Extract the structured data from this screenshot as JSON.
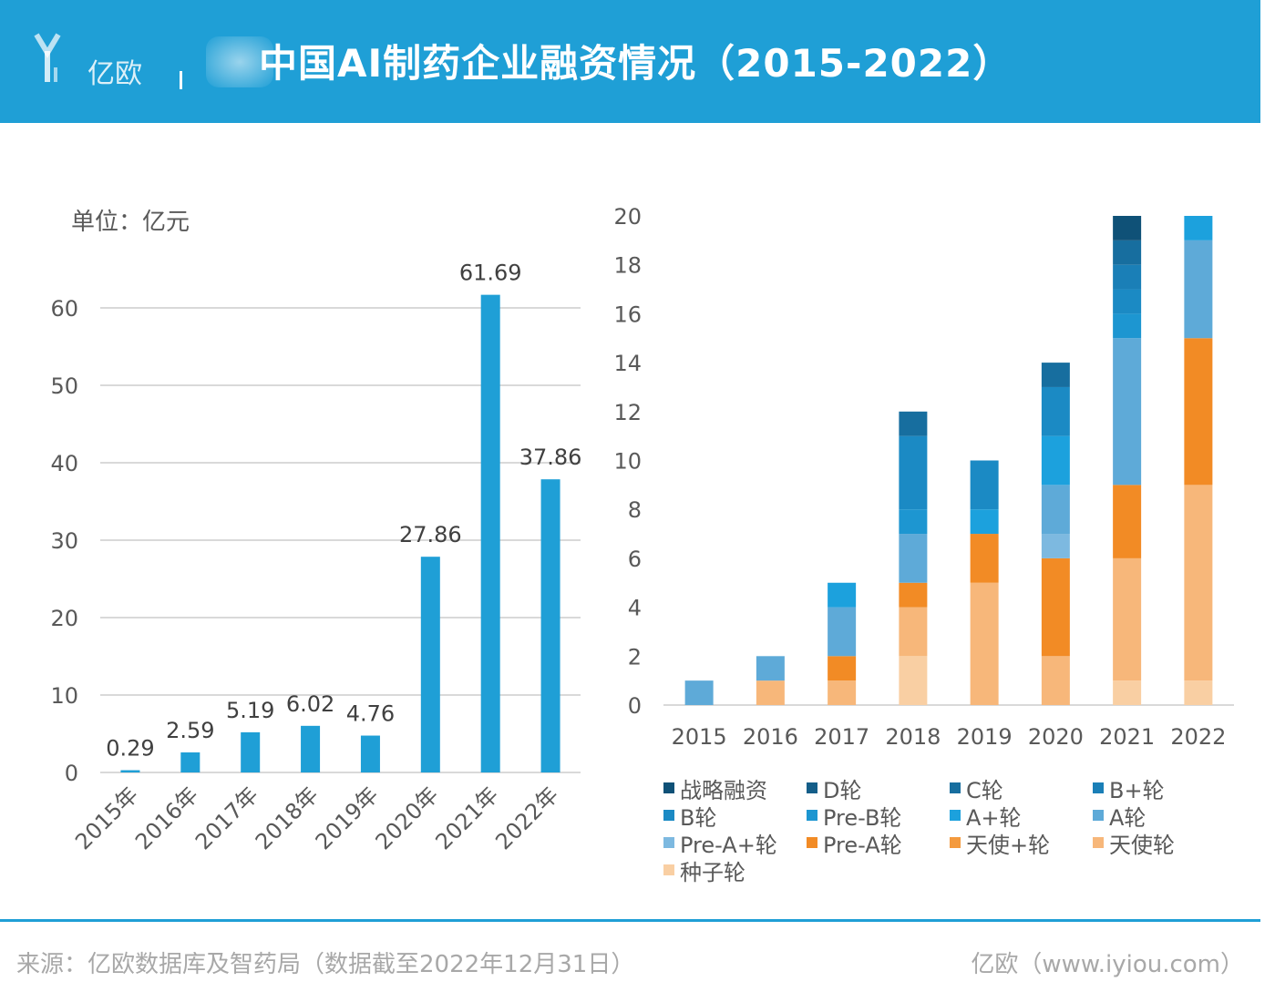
{
  "header": {
    "title": "中国AI制药企业融资情况（2015-2022）",
    "logo_text": "亿欧",
    "background_color": "#1f9fd6"
  },
  "chart_data": [
    {
      "type": "bar",
      "title": "",
      "unit_label": "单位：亿元",
      "categories": [
        "2015年",
        "2016年",
        "2017年",
        "2018年",
        "2019年",
        "2020年",
        "2021年",
        "2022年"
      ],
      "values": [
        0.29,
        2.59,
        5.19,
        6.02,
        4.76,
        27.86,
        61.69,
        37.86
      ],
      "value_labels": [
        "0.29",
        "2.59",
        "5.19",
        "6.02",
        "4.76",
        "27.86",
        "61.69",
        "37.86"
      ],
      "ylim": [
        0,
        60
      ],
      "yticks": [
        0,
        10,
        20,
        30,
        40,
        50,
        60
      ],
      "grid": true,
      "color": "#1f9fd6"
    },
    {
      "type": "bar",
      "stacked": true,
      "title": "",
      "categories": [
        "2015",
        "2016",
        "2017",
        "2018",
        "2019",
        "2020",
        "2021",
        "2022"
      ],
      "ylim": [
        0,
        20
      ],
      "yticks": [
        0,
        2,
        4,
        6,
        8,
        10,
        12,
        14,
        16,
        18,
        20
      ],
      "grid": false,
      "legend_position": "bottom",
      "series": [
        {
          "name": "种子轮",
          "color": "#f9cfa3",
          "values": [
            0,
            0,
            0,
            2,
            0,
            0,
            1,
            1
          ]
        },
        {
          "name": "天使轮",
          "color": "#f7b77a",
          "values": [
            0,
            1,
            1,
            2,
            5,
            2,
            5,
            8
          ]
        },
        {
          "name": "天使+轮",
          "color": "#f49a3d",
          "values": [
            0,
            0,
            0,
            0,
            0,
            0,
            0,
            0
          ]
        },
        {
          "name": "Pre-A轮",
          "color": "#f28b25",
          "values": [
            0,
            0,
            1,
            1,
            2,
            4,
            3,
            6
          ]
        },
        {
          "name": "Pre-A+轮",
          "color": "#7db9e0",
          "values": [
            0,
            0,
            0,
            0,
            0,
            1,
            0,
            0
          ]
        },
        {
          "name": "A轮",
          "color": "#5eaad8",
          "values": [
            1,
            1,
            2,
            2,
            0,
            2,
            6,
            4
          ]
        },
        {
          "name": "A+轮",
          "color": "#1ca1dd",
          "values": [
            0,
            0,
            1,
            0,
            1,
            2,
            0,
            1
          ]
        },
        {
          "name": "Pre-B轮",
          "color": "#1d96d1",
          "values": [
            0,
            0,
            0,
            1,
            0,
            0,
            1,
            0
          ]
        },
        {
          "name": "B轮",
          "color": "#1b8ac4",
          "values": [
            0,
            0,
            0,
            3,
            2,
            2,
            1,
            0
          ]
        },
        {
          "name": "B+轮",
          "color": "#1a7fb7",
          "values": [
            0,
            0,
            0,
            0,
            0,
            0,
            1,
            0
          ]
        },
        {
          "name": "C轮",
          "color": "#176e9f",
          "values": [
            0,
            0,
            0,
            1,
            0,
            1,
            1,
            0
          ]
        },
        {
          "name": "D轮",
          "color": "#145e89",
          "values": [
            0,
            0,
            0,
            0,
            0,
            0,
            0,
            0
          ]
        },
        {
          "name": "战略融资",
          "color": "#0f5177",
          "values": [
            0,
            0,
            0,
            0,
            0,
            0,
            1,
            0
          ]
        }
      ],
      "legend_order": [
        "战略融资",
        "D轮",
        "C轮",
        "B+轮",
        "B轮",
        "Pre-B轮",
        "A+轮",
        "A轮",
        "Pre-A+轮",
        "Pre-A轮",
        "天使+轮",
        "天使轮",
        "种子轮"
      ]
    }
  ],
  "footer": {
    "source": "来源：亿欧数据库及智药局（数据截至2022年12月31日）",
    "brand": "亿欧（www.iyiou.com）"
  }
}
